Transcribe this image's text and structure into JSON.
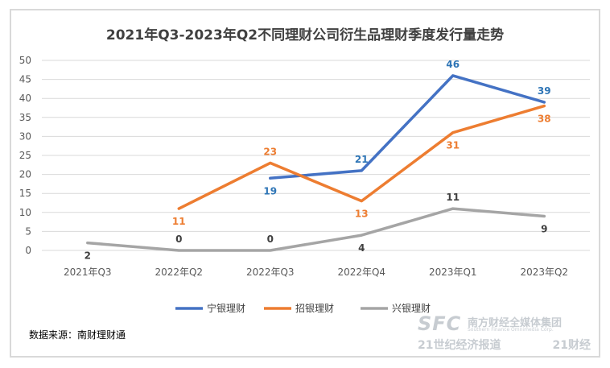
{
  "chart_data": {
    "type": "line",
    "title": "2021年Q3-2023年Q2不同理财公司衍生品理财季度发行量走势",
    "categories": [
      "2021年Q3",
      "2022年Q2",
      "2022年Q3",
      "2022年Q4",
      "2023年Q1",
      "2023年Q2"
    ],
    "ylim": [
      0,
      50
    ],
    "yticks": [
      0,
      5,
      10,
      15,
      20,
      25,
      30,
      35,
      40,
      45,
      50
    ],
    "grid": true,
    "legend_position": "bottom",
    "series": [
      {
        "name": "宁银理财",
        "color": "#4472c4",
        "label_color": "#2e75b6",
        "values": [
          null,
          null,
          19,
          21,
          46,
          39
        ]
      },
      {
        "name": "招银理财",
        "color": "#ed7d31",
        "label_color": "#ed7d31",
        "values": [
          null,
          11,
          23,
          13,
          31,
          38
        ]
      },
      {
        "name": "兴银理财",
        "color": "#a5a5a5",
        "label_color": "#404040",
        "values": [
          2,
          0,
          0,
          4,
          11,
          9
        ]
      }
    ]
  },
  "source": "数据来源：南财理财通",
  "watermark": {
    "logo": "SFC",
    "org": "南方财经全媒体集团",
    "org_en": "Southern Finance Omnimedia Corp.",
    "brand": "21世纪经济报道",
    "brand2": "21财经"
  }
}
